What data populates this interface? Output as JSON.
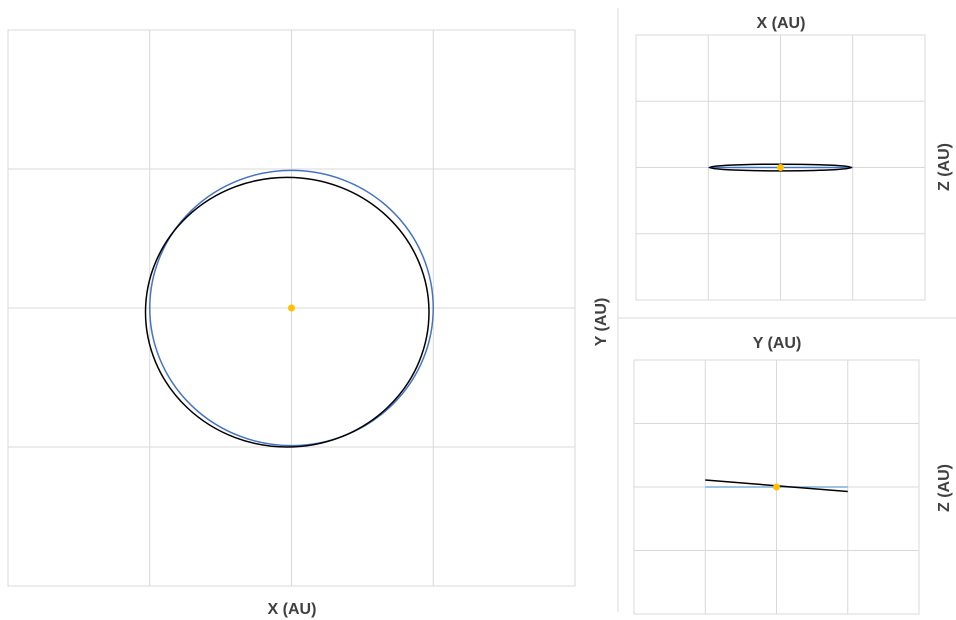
{
  "chart_data": [
    {
      "type": "line",
      "view": "top",
      "xlabel": "X (AU)",
      "ylabel": "Y (AU)",
      "xlim": [
        -2,
        2
      ],
      "ylim": [
        -2,
        2
      ],
      "grid": true,
      "series": [
        {
          "role": "orbit-reference",
          "color": "#4472c4",
          "shape": "ellipse",
          "center": [
            0.0,
            0.0
          ],
          "radii": [
            1.0,
            0.99
          ]
        },
        {
          "role": "orbit-object",
          "color": "#000000",
          "shape": "ellipse",
          "center": [
            -0.03,
            -0.03
          ],
          "radii": [
            1.0,
            0.97
          ]
        }
      ],
      "points": [
        {
          "role": "sun",
          "x": 0.0,
          "y": 0.0,
          "color": "#ffc000"
        }
      ]
    },
    {
      "type": "line",
      "view": "side-xz",
      "xlabel": "X (AU)",
      "ylabel": "Z (AU)",
      "xlim": [
        -2,
        2
      ],
      "ylim": [
        -2,
        2
      ],
      "grid": true,
      "series": [
        {
          "role": "orbit-reference",
          "color": "#4472c4",
          "shape": "segment",
          "points": [
            [
              -1.0,
              0.0
            ],
            [
              1.0,
              0.0
            ]
          ]
        },
        {
          "role": "orbit-object",
          "color": "#000000",
          "shape": "ellipse",
          "center": [
            0.0,
            0.0
          ],
          "radii": [
            0.98,
            0.05
          ]
        }
      ],
      "points": [
        {
          "role": "sun",
          "x": 0.0,
          "y": 0.0,
          "color": "#ffc000"
        }
      ]
    },
    {
      "type": "line",
      "view": "side-yz",
      "xlabel": "Y (AU)",
      "ylabel": "Z (AU)",
      "xlim": [
        -2,
        2
      ],
      "ylim": [
        -2,
        2
      ],
      "grid": true,
      "series": [
        {
          "role": "orbit-reference",
          "color": "#7fb2d6",
          "shape": "segment",
          "points": [
            [
              -1.0,
              0.0
            ],
            [
              1.0,
              0.0
            ]
          ]
        },
        {
          "role": "orbit-object",
          "color": "#000000",
          "shape": "segment",
          "points": [
            [
              -1.0,
              0.11
            ],
            [
              1.0,
              -0.07
            ]
          ]
        }
      ],
      "points": [
        {
          "role": "sun",
          "x": 0.0,
          "y": 0.0,
          "color": "#ffc000"
        }
      ]
    }
  ]
}
